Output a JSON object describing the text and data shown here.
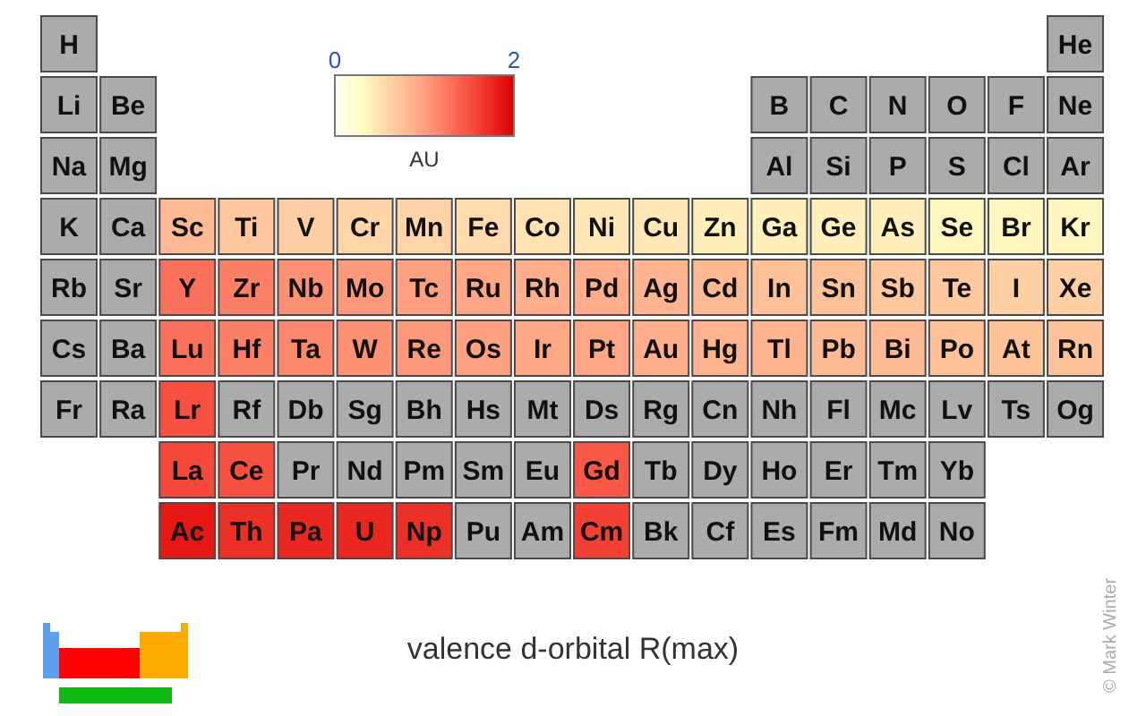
{
  "chart_data": [
    {
      "type": "other",
      "annotations": [
        "H",
        "He",
        "Li",
        "Be",
        "B",
        "C",
        "N",
        "O",
        "F",
        "Ne",
        "Na",
        "Mg",
        "Al",
        "Si",
        "P",
        "S",
        "Cl",
        "Ar"
      ]
    },
    {
      "type": "heatmap",
      "title": "valence d-orbital R(max)",
      "annotations": [
        "© Mark Winter"
      ],
      "clabel": "AU",
      "clim": [
        0,
        2
      ],
      "cticks": [
        0,
        2
      ],
      "categories": [
        null,
        null,
        null,
        null,
        null,
        null,
        null,
        null,
        null,
        null,
        null,
        null,
        null,
        null,
        null,
        null,
        null,
        null
      ],
      "y_categories": [
        null,
        null,
        null,
        null,
        null,
        null
      ],
      "cells": [
        [
          null,
          null,
          0.8,
          0.7,
          0.65,
          0.6,
          0.6,
          0.55,
          0.5,
          0.45,
          0.45,
          0.4,
          0.4,
          0.4,
          0.4,
          0.35,
          0.35,
          0.35
        ],
        [
          null,
          null,
          1.3,
          1.2,
          1.1,
          1.05,
          1.0,
          0.95,
          0.9,
          0.9,
          0.85,
          0.8,
          0.75,
          0.75,
          0.7,
          0.7,
          0.65,
          0.65
        ],
        [
          null,
          null,
          1.3,
          1.2,
          1.15,
          1.1,
          1.05,
          1.0,
          0.95,
          0.95,
          0.9,
          0.85,
          0.85,
          0.8,
          0.8,
          0.75,
          0.75,
          0.75
        ],
        [
          null,
          null,
          1.5,
          null,
          null,
          null,
          null,
          null,
          null,
          null,
          null,
          null,
          null,
          null,
          null,
          null,
          null,
          null
        ],
        [
          null,
          null,
          1.55,
          1.5,
          null,
          null,
          null,
          null,
          null,
          1.45,
          null,
          null,
          null,
          null,
          null,
          null,
          null,
          null
        ],
        [
          null,
          null,
          1.85,
          1.7,
          1.75,
          1.75,
          1.7,
          null,
          null,
          1.6,
          null,
          null,
          null,
          null,
          null,
          null,
          null,
          null
        ]
      ],
      "cell_labels": [
        [
          "K",
          "Ca",
          "Sc",
          "Ti",
          "V",
          "Cr",
          "Mn",
          "Fe",
          "Co",
          "Ni",
          "Cu",
          "Zn",
          "Ga",
          "Ge",
          "As",
          "Se",
          "Br",
          "Kr"
        ],
        [
          "Rb",
          "Sr",
          "Y",
          "Zr",
          "Nb",
          "Mo",
          "Tc",
          "Ru",
          "Rh",
          "Pd",
          "Ag",
          "Cd",
          "In",
          "Sn",
          "Sb",
          "Te",
          "I",
          "Xe"
        ],
        [
          "Cs",
          "Ba",
          "Lu",
          "Hf",
          "Ta",
          "W",
          "Re",
          "Os",
          "Ir",
          "Pt",
          "Au",
          "Hg",
          "Tl",
          "Pb",
          "Bi",
          "Po",
          "At",
          "Rn"
        ],
        [
          "Fr",
          "Ra",
          "Lr",
          "Rf",
          "Db",
          "Sg",
          "Bh",
          "Hs",
          "Mt",
          "Ds",
          "Rg",
          "Cn",
          "Nh",
          "Fl",
          "Mc",
          "Lv",
          "Ts",
          "Og"
        ],
        [
          null,
          null,
          "La",
          "Ce",
          "Pr",
          "Nd",
          "Pm",
          "Sm",
          "Eu",
          "Gd",
          "Tb",
          "Dy",
          "Ho",
          "Er",
          "Tm",
          "Yb",
          null,
          null
        ],
        [
          null,
          null,
          "Ac",
          "Th",
          "Pa",
          "U",
          "Np",
          "Pu",
          "Am",
          "Cm",
          "Bk",
          "Cf",
          "Es",
          "Fm",
          "Md",
          "No",
          null,
          null
        ]
      ]
    }
  ]
}
